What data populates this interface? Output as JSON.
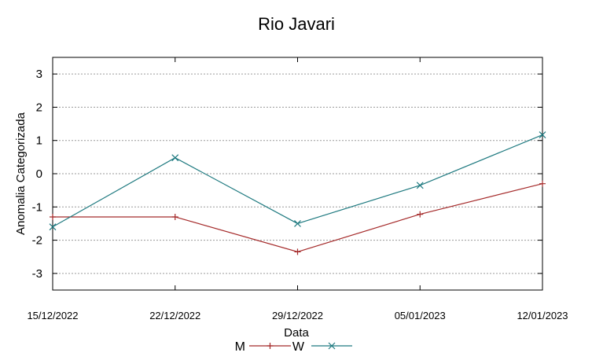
{
  "chart_data": {
    "type": "line",
    "title": "Rio Javari",
    "xlabel": "Data",
    "ylabel": "Anomalia Categorizada",
    "categories": [
      "15/12/2022",
      "22/12/2022",
      "29/12/2022",
      "05/01/2023",
      "12/01/2023"
    ],
    "yticks": [
      "3",
      "2",
      "1",
      "0",
      "-1",
      "-2",
      "-3"
    ],
    "ytick_values": [
      3,
      2,
      1,
      0,
      -1,
      -2,
      -3
    ],
    "ylim": [
      -3.5,
      3.5
    ],
    "grid": true,
    "legend_position": "bottom",
    "series": [
      {
        "name": "M",
        "values": [
          -1.3,
          -1.3,
          -2.35,
          -1.22,
          -0.3
        ],
        "color": "#a52a2a",
        "marker": "plus"
      },
      {
        "name": "W",
        "values": [
          -1.6,
          0.48,
          -1.5,
          -0.35,
          1.17
        ],
        "color": "#1f7a80",
        "marker": "cross"
      }
    ]
  }
}
